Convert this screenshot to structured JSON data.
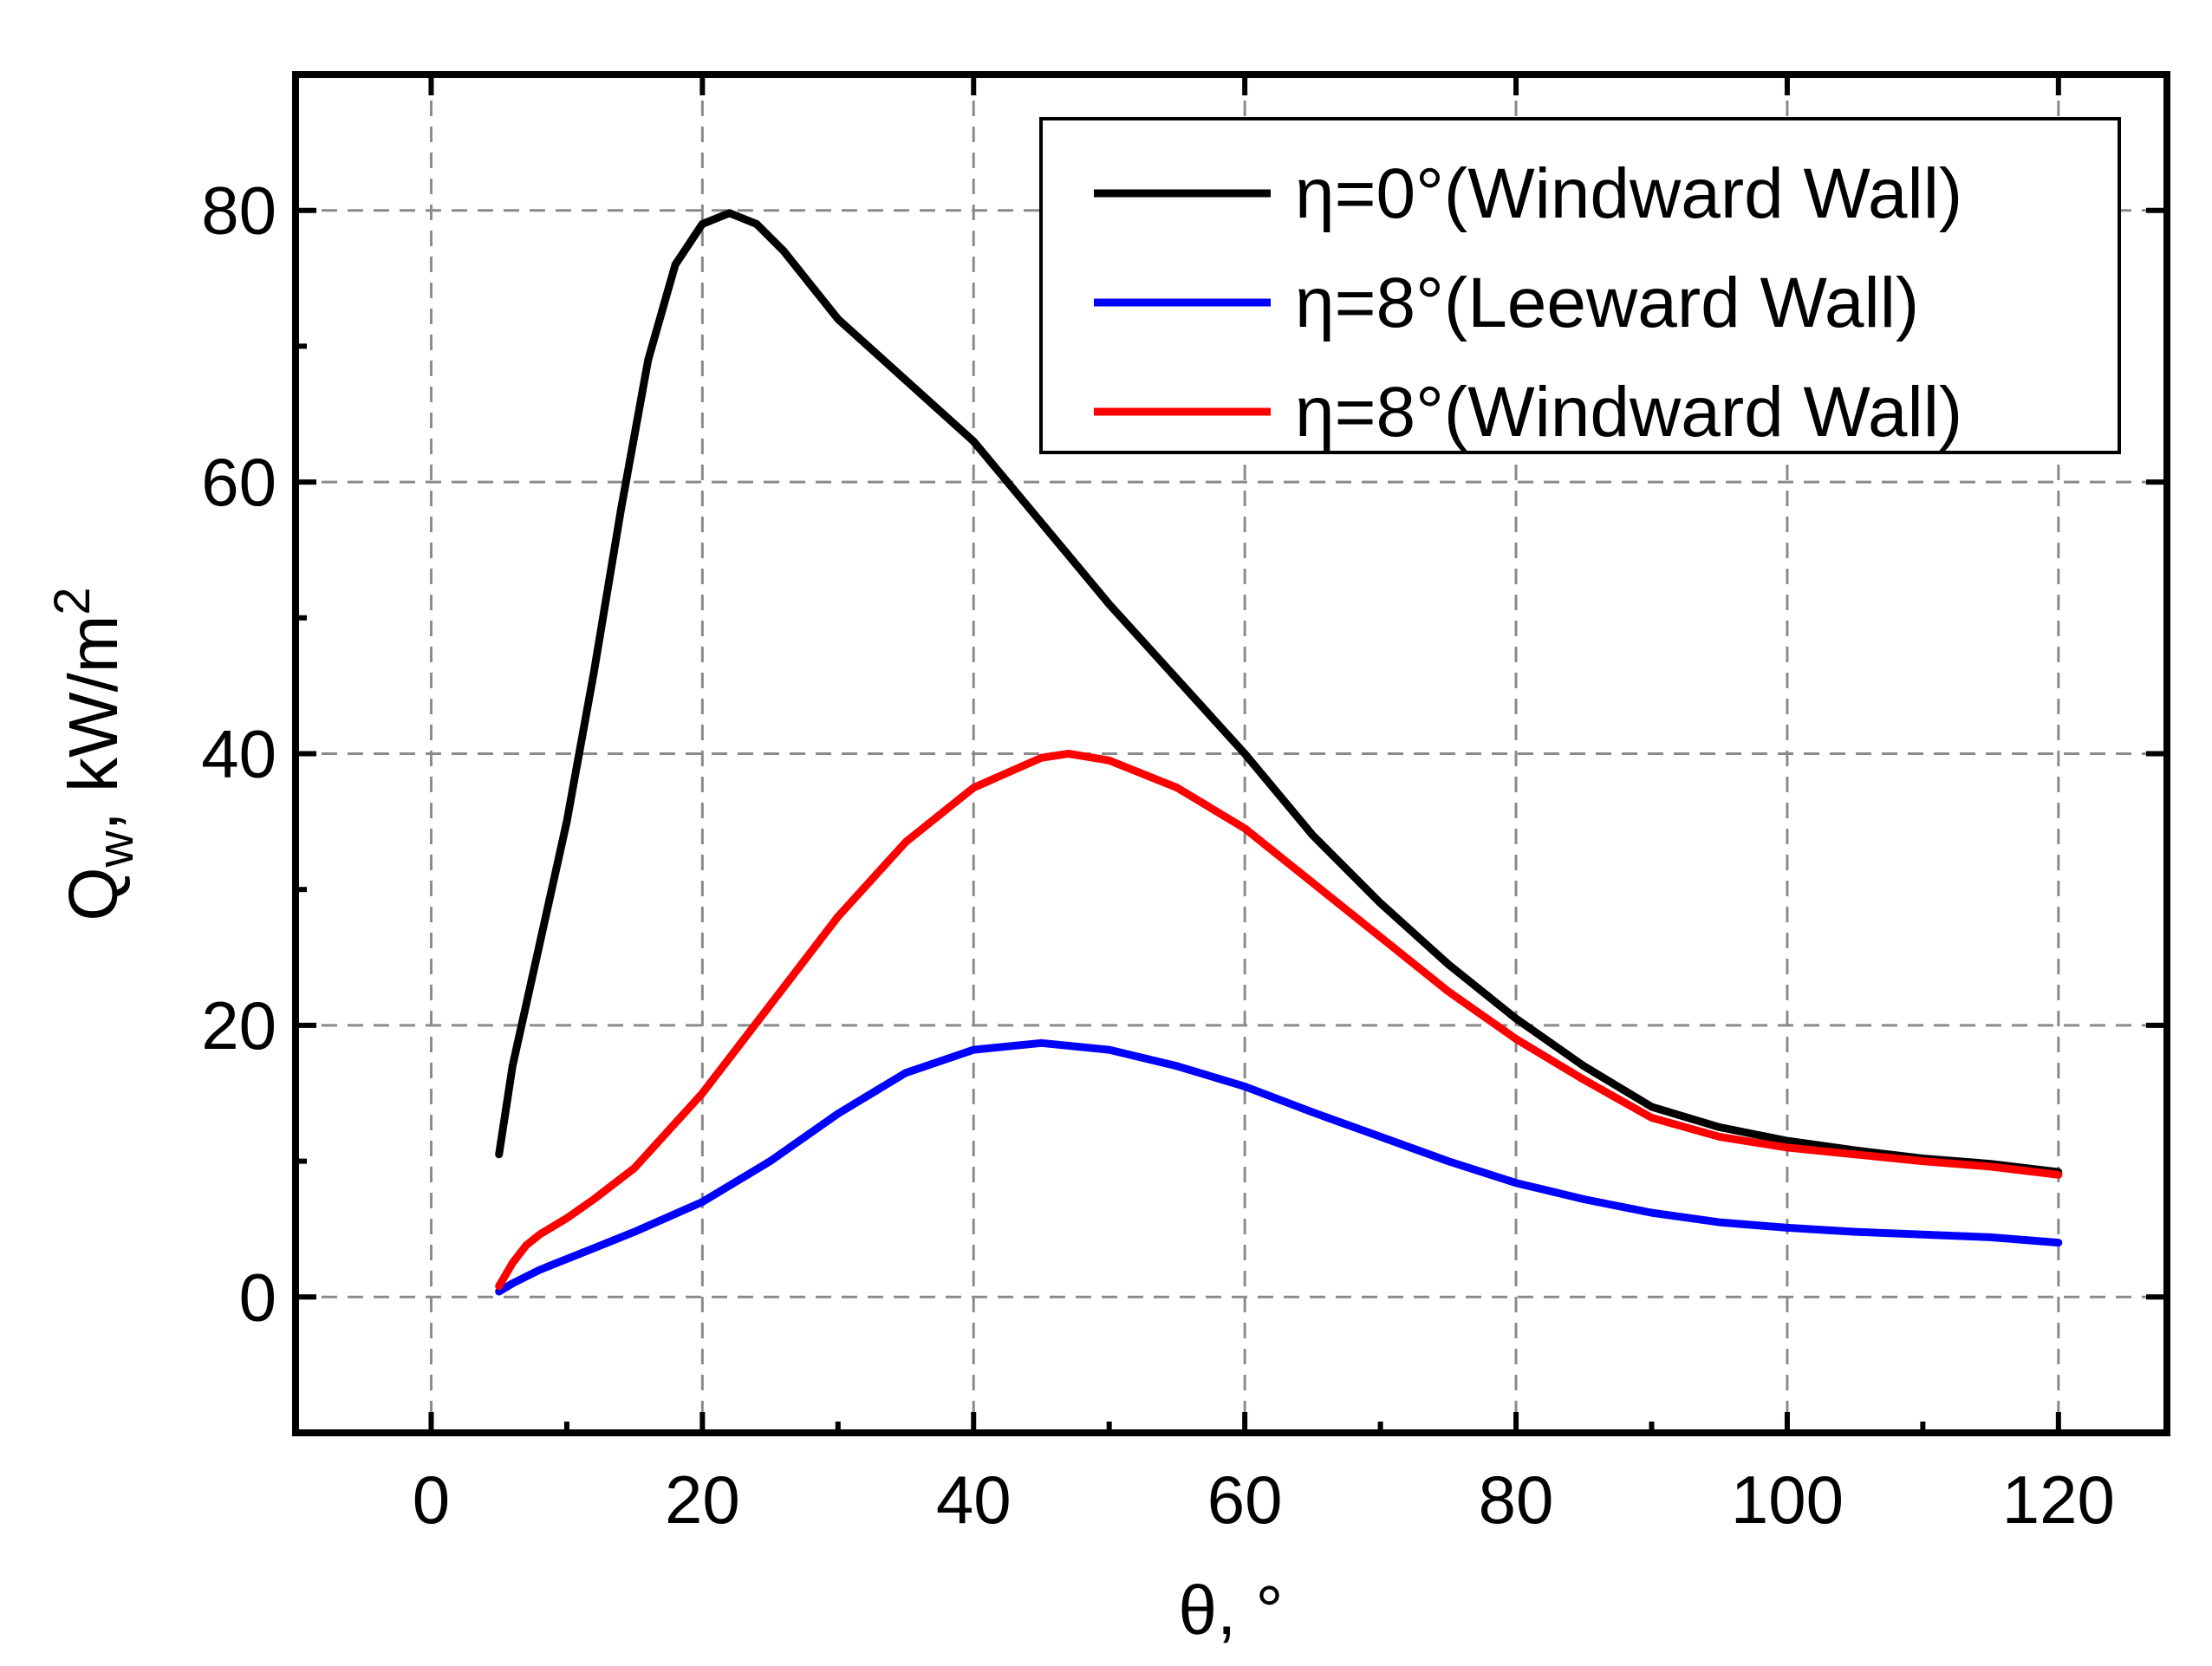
{
  "chart_data": {
    "type": "line",
    "title": "",
    "xlabel": "θ, °",
    "ylabel": {
      "main": "Q",
      "sub": "w",
      "mid": ", kW/m",
      "sup": "2"
    },
    "xlim": [
      -10,
      128
    ],
    "ylim": [
      -10,
      90
    ],
    "xticks": [
      0,
      20,
      40,
      60,
      80,
      100,
      120
    ],
    "yticks": [
      0,
      20,
      40,
      60,
      80
    ],
    "xtick_labels": [
      "0",
      "20",
      "40",
      "60",
      "80",
      "100",
      "120"
    ],
    "ytick_labels": [
      "0",
      "20",
      "40",
      "60",
      "80"
    ],
    "grid": true,
    "legend_position": "top-right",
    "series": [
      {
        "name": "η=0°(Windward Wall)",
        "color": "#000000",
        "x": [
          5,
          6,
          8,
          10,
          12,
          14,
          16,
          18,
          20,
          22,
          24,
          26,
          28,
          30,
          35,
          40,
          45,
          50,
          55,
          60,
          65,
          70,
          75,
          80,
          85,
          90,
          95,
          100,
          105,
          110,
          115,
          120
        ],
        "y": [
          10.5,
          17,
          26,
          35,
          46,
          58,
          69,
          76,
          79,
          79.8,
          79,
          77,
          74.5,
          72,
          67.5,
          63,
          57,
          51,
          45.5,
          40,
          34,
          29,
          24.5,
          20.5,
          17,
          14,
          12.5,
          11.5,
          10.8,
          10.2,
          9.8,
          9.2
        ]
      },
      {
        "name": "η=8°(Leeward Wall)",
        "color": "#0000ff",
        "x": [
          5,
          6,
          8,
          10,
          12,
          15,
          20,
          25,
          30,
          35,
          40,
          45,
          50,
          55,
          60,
          65,
          70,
          75,
          80,
          85,
          90,
          95,
          100,
          105,
          110,
          115,
          120
        ],
        "y": [
          0.4,
          1,
          2,
          2.8,
          3.6,
          4.8,
          7,
          10,
          13.5,
          16.5,
          18.2,
          18.7,
          18.2,
          17,
          15.5,
          13.6,
          11.8,
          10,
          8.4,
          7.2,
          6.2,
          5.5,
          5.1,
          4.8,
          4.6,
          4.4,
          4
        ]
      },
      {
        "name": "η=8°(Windward Wall)",
        "color": "#ff0000",
        "x": [
          5,
          6,
          7,
          8,
          10,
          12,
          15,
          20,
          25,
          30,
          35,
          40,
          45,
          47,
          50,
          55,
          60,
          65,
          70,
          75,
          80,
          85,
          90,
          95,
          100,
          105,
          110,
          115,
          120
        ],
        "y": [
          0.8,
          2.5,
          3.8,
          4.6,
          5.8,
          7.2,
          9.5,
          15,
          21.5,
          28,
          33.5,
          37.5,
          39.7,
          40,
          39.5,
          37.5,
          34.5,
          30.5,
          26.5,
          22.5,
          19,
          16,
          13.2,
          11.8,
          11,
          10.5,
          10,
          9.6,
          9
        ]
      }
    ]
  }
}
